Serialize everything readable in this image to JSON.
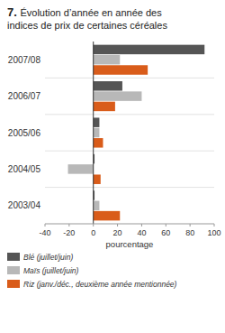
{
  "chart_data": {
    "type": "bar",
    "orientation": "horizontal",
    "title": "7. Évolution d’année en année des\nindices de prix de certaines céréales",
    "categories": [
      "2007/08",
      "2006/07",
      "2005/06",
      "2004/05",
      "2003/04"
    ],
    "series": [
      {
        "name": "Blé (juillet/juin)",
        "color": "#555555",
        "values": [
          92,
          24,
          5,
          1,
          1
        ]
      },
      {
        "name": "Maïs (juillet/juin)",
        "color": "#b8b8b8",
        "values": [
          22,
          40,
          5,
          -21,
          5
        ]
      },
      {
        "name": "Riz (janv./déc., deuxième année mentionnée)",
        "color": "#d95c1a",
        "values": [
          45,
          18,
          8,
          6,
          22
        ]
      }
    ],
    "xlabel": "pourcentage",
    "xlim": [
      -40,
      100
    ],
    "xticks": [
      -40,
      -20,
      0,
      20,
      40,
      60,
      80,
      100
    ],
    "legend": "bottom"
  }
}
